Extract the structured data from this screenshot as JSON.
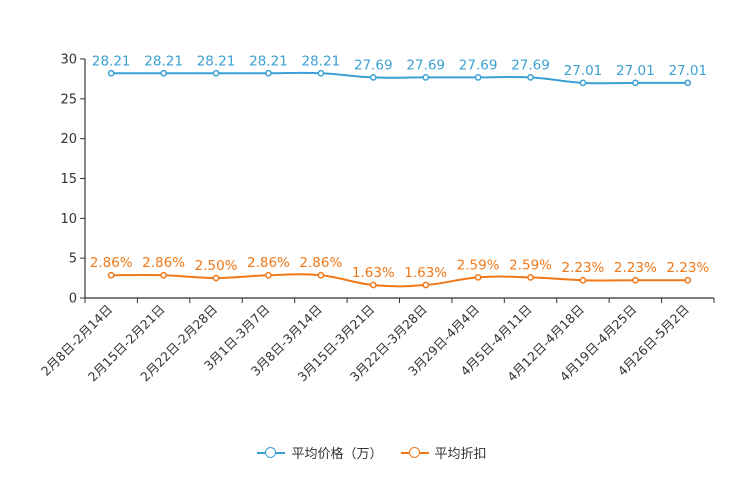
{
  "chart_data": {
    "type": "line",
    "title": "",
    "xlabel": "",
    "ylabel": "",
    "ylim": [
      0,
      30
    ],
    "yticks": [
      0,
      5,
      10,
      15,
      20,
      25,
      30
    ],
    "grid": false,
    "legend_position": "bottom-center",
    "categories": [
      "2月8日-2月14日",
      "2月15日-2月21日",
      "2月22日-2月28日",
      "3月1日-3月7日",
      "3月8日-3月14日",
      "3月15日-3月21日",
      "3月22日-3月28日",
      "3月29日-4月4日",
      "4月5日-4月11日",
      "4月12日-4月18日",
      "4月19日-4月25日",
      "4月26日-5月2日"
    ],
    "series": [
      {
        "name": "平均价格（万）",
        "color": "#3ba0d4",
        "values": [
          28.21,
          28.21,
          28.21,
          28.21,
          28.21,
          27.69,
          27.69,
          27.69,
          27.69,
          27.01,
          27.01,
          27.01
        ],
        "labels": [
          "28.21",
          "28.21",
          "28.21",
          "28.21",
          "28.21",
          "27.69",
          "27.69",
          "27.69",
          "27.69",
          "27.01",
          "27.01",
          "27.01"
        ]
      },
      {
        "name": "平均折扣",
        "color": "#f07818",
        "values": [
          2.86,
          2.86,
          2.5,
          2.86,
          2.86,
          1.63,
          1.63,
          2.59,
          2.59,
          2.23,
          2.23,
          2.23
        ],
        "labels": [
          "2.86%",
          "2.86%",
          "2.50%",
          "2.86%",
          "2.86%",
          "1.63%",
          "1.63%",
          "2.59%",
          "2.59%",
          "2.23%",
          "2.23%",
          "2.23%"
        ]
      }
    ]
  }
}
